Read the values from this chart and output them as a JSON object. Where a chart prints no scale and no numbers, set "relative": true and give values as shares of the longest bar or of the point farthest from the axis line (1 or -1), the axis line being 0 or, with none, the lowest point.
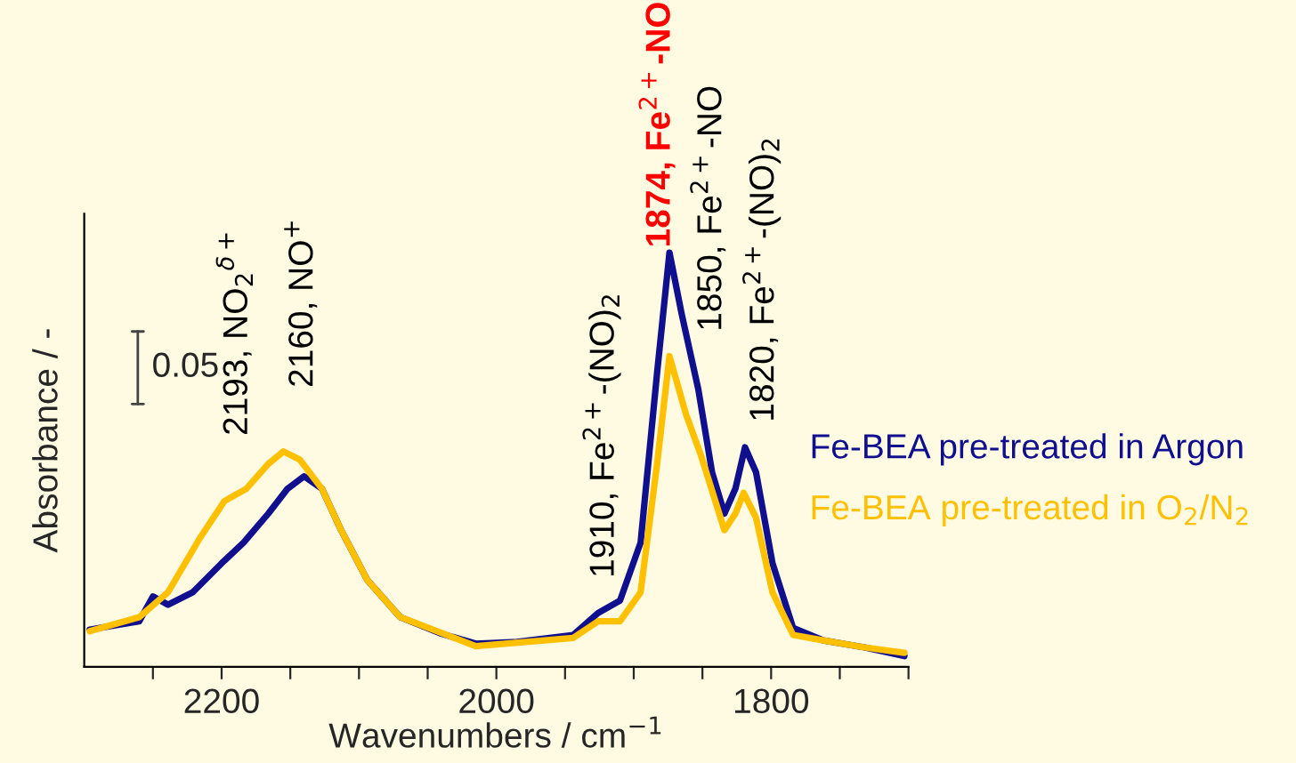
{
  "chart_data": {
    "type": "line",
    "relative": true,
    "xlabel": "Wavenumbers / cm$^{−1}$",
    "ylabel": "Absorbance / -",
    "xlim": [
      2300,
      1700
    ],
    "xticks": [
      {
        "value": 2250,
        "label": null
      },
      2200,
      {
        "value": 2150,
        "label": null
      },
      {
        "value": 2100,
        "label": null
      },
      {
        "value": 2050,
        "label": null
      },
      2000,
      {
        "value": 1950,
        "label": null
      },
      {
        "value": 1900,
        "label": null
      },
      {
        "value": 1850,
        "label": null
      },
      1800,
      {
        "value": 1750,
        "label": null
      },
      {
        "value": 1700,
        "label": null
      }
    ],
    "legend": "right",
    "grid": false,
    "marker": "none",
    "line_style": "solid",
    "series": [
      {
        "name": "Fe-BEA pre-treated in Argon",
        "color": "#10108f",
        "x": [
          2296,
          2260,
          2250,
          2239,
          2221,
          2200,
          2184,
          2166,
          2152,
          2140,
          2127,
          2113,
          2094,
          2070,
          2040,
          2015,
          1985,
          1944,
          1926,
          1910,
          1895,
          1883,
          1874,
          1865,
          1853,
          1843,
          1834,
          1826,
          1819,
          1811,
          1799,
          1784,
          1762,
          1732,
          1703
        ],
        "values": [
          0.09,
          0.11,
          0.17,
          0.15,
          0.18,
          0.25,
          0.3,
          0.37,
          0.43,
          0.46,
          0.43,
          0.33,
          0.21,
          0.12,
          0.08,
          0.056,
          0.06,
          0.077,
          0.13,
          0.16,
          0.3,
          0.71,
          1.0,
          0.85,
          0.67,
          0.47,
          0.37,
          0.43,
          0.53,
          0.47,
          0.25,
          0.094,
          0.064,
          0.047,
          0.026
        ]
      },
      {
        "name": "Fe-BEA pre-treated in O$_{2}$/N$_{2}$",
        "color": "#ffc000",
        "x": [
          2296,
          2260,
          2239,
          2216,
          2198,
          2182,
          2166,
          2155,
          2143,
          2127,
          2113,
          2094,
          2070,
          2015,
          1944,
          1926,
          1910,
          1895,
          1883,
          1874,
          1862,
          1851,
          1834,
          1826,
          1820,
          1811,
          1799,
          1784,
          1762,
          1732,
          1703
        ],
        "values": [
          0.086,
          0.12,
          0.18,
          0.31,
          0.4,
          0.43,
          0.49,
          0.52,
          0.5,
          0.43,
          0.33,
          0.21,
          0.12,
          0.05,
          0.07,
          0.11,
          0.11,
          0.18,
          0.49,
          0.75,
          0.61,
          0.51,
          0.33,
          0.37,
          0.42,
          0.36,
          0.18,
          0.077,
          0.064,
          0.047,
          0.034
        ]
      }
    ],
    "annotations": [
      "2193, NO$_{2}$$^{δ+}$",
      "2160, NO$^{+}$",
      "1910, Fe$^{2+}$-(NO)$_{2}$",
      "1874, Fe$^{2+}$-NO",
      "1850, Fe$^{2+}$-NO",
      "1820, Fe$^{2+}$-(NO)$_{2}$",
      "0.05"
    ]
  }
}
